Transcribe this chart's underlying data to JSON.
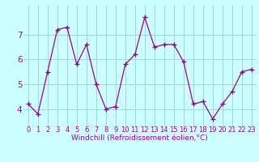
{
  "x": [
    0,
    1,
    2,
    3,
    4,
    5,
    6,
    7,
    8,
    9,
    10,
    11,
    12,
    13,
    14,
    15,
    16,
    17,
    18,
    19,
    20,
    21,
    22,
    23
  ],
  "y": [
    4.2,
    3.8,
    5.5,
    7.2,
    7.3,
    5.8,
    6.6,
    5.0,
    4.0,
    4.1,
    5.8,
    6.2,
    7.7,
    6.5,
    6.6,
    6.6,
    5.9,
    4.2,
    4.3,
    3.6,
    4.2,
    4.7,
    5.5,
    5.6
  ],
  "line_color": "#990099",
  "marker": "+",
  "bg_color": "#ccffff",
  "grid_color": "#aacccc",
  "xlabel": "Windchill (Refroidissement éolien,°C)",
  "ylabel_ticks": [
    4,
    5,
    6,
    7
  ],
  "xtick_labels": [
    "0",
    "1",
    "2",
    "3",
    "4",
    "5",
    "6",
    "7",
    "8",
    "9",
    "10",
    "11",
    "12",
    "13",
    "14",
    "15",
    "16",
    "17",
    "18",
    "19",
    "20",
    "21",
    "22",
    "23"
  ],
  "ylim": [
    3.3,
    8.2
  ],
  "xlim": [
    -0.5,
    23.5
  ],
  "font_color": "#990099",
  "axis_label_fontsize": 6.5,
  "tick_fontsize": 6.0,
  "ytick_fontsize": 7.5,
  "linewidth": 0.9,
  "markersize": 4,
  "markeredgewidth": 1.0
}
